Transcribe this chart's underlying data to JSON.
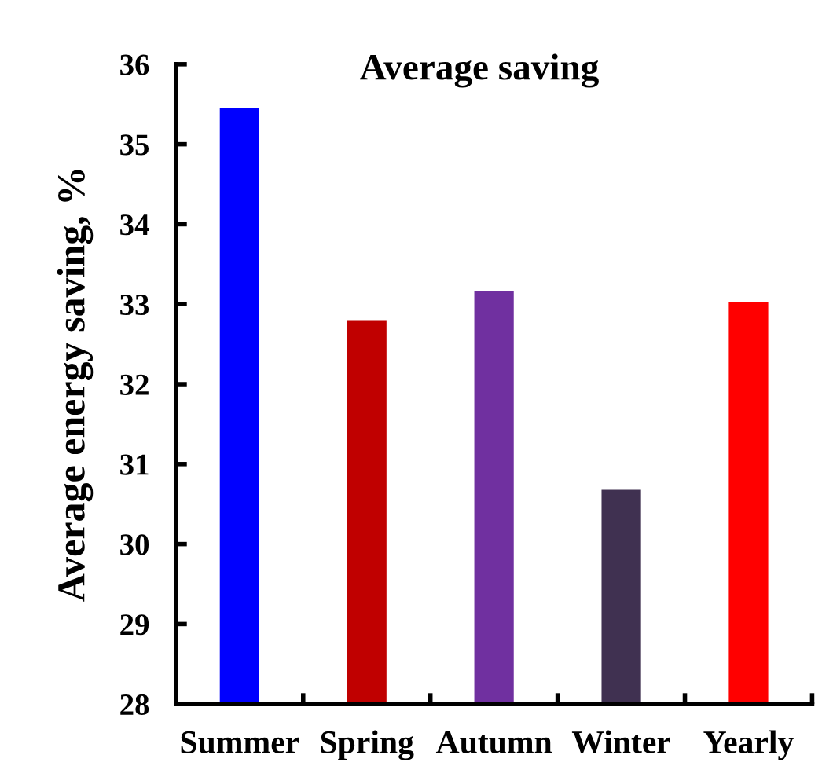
{
  "chart_data": {
    "type": "bar",
    "title": "Average saving",
    "ylabel": "Average energy saving, %",
    "categories": [
      "Summer",
      "Spring",
      "Autumn",
      "Winter",
      "Yearly"
    ],
    "values": [
      35.45,
      32.8,
      33.17,
      30.68,
      33.03
    ],
    "colors": [
      "#0000ff",
      "#c00000",
      "#7030a0",
      "#403151",
      "#ff0000"
    ],
    "ylim": [
      28,
      36
    ],
    "yticks": [
      28,
      29,
      30,
      31,
      32,
      33,
      34,
      35,
      36
    ]
  }
}
